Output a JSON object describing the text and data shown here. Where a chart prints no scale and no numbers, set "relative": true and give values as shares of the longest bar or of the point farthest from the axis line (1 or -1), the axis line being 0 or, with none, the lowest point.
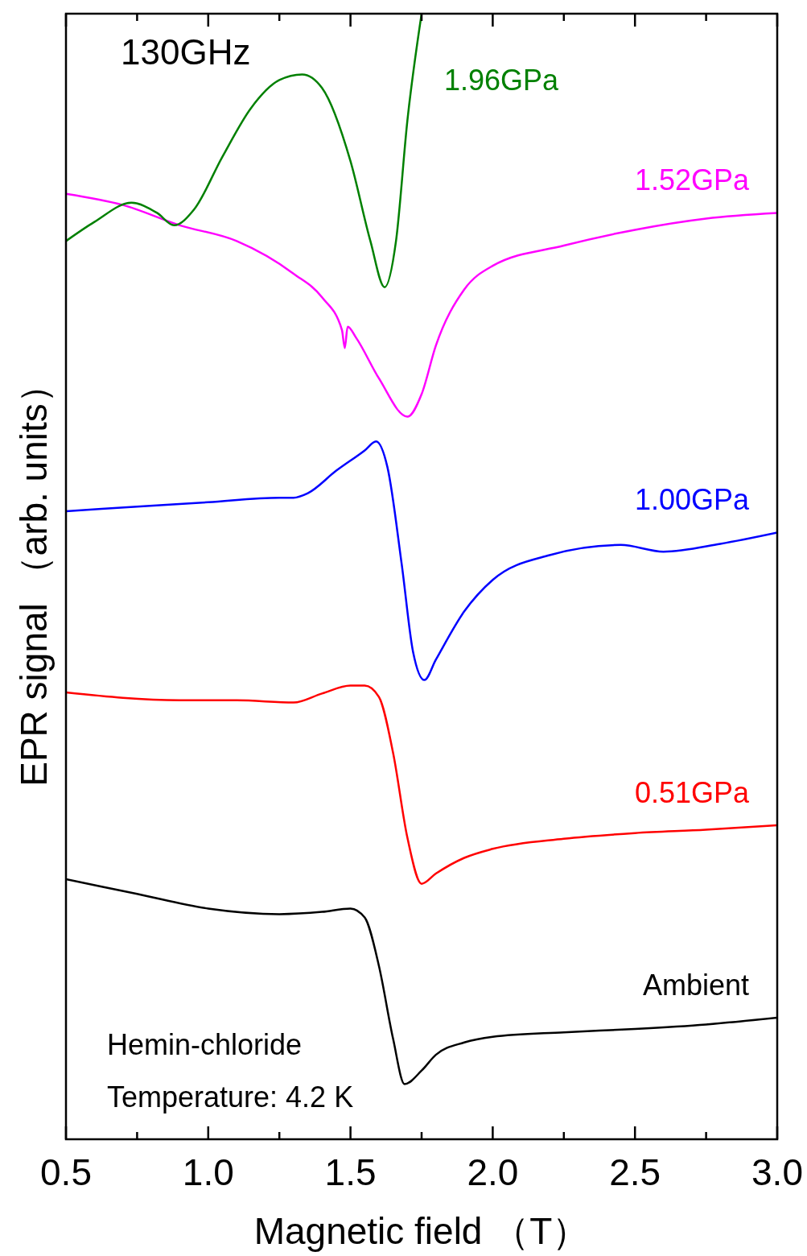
{
  "chart_data": {
    "type": "line",
    "relative": true,
    "xlabel": "Magnetic field （T）",
    "ylabel": "EPR signal （arb. units）",
    "xlim": [
      0.5,
      3.0
    ],
    "xticks": [
      {
        "value": 0.5,
        "label": "0.5"
      },
      {
        "value": 0.75,
        "label": null
      },
      {
        "value": 1,
        "label": "1.0"
      },
      {
        "value": 1.25,
        "label": null
      },
      {
        "value": 1.5,
        "label": "1.5"
      },
      {
        "value": 1.75,
        "label": null
      },
      {
        "value": 2,
        "label": "2.0"
      },
      {
        "value": 2.25,
        "label": null
      },
      {
        "value": 2.5,
        "label": "2.5"
      },
      {
        "value": 2.75,
        "label": null
      },
      {
        "value": 3,
        "label": "3.0"
      }
    ],
    "grid": false,
    "marker": "none",
    "line_style": "solid",
    "annotations": [
      "130GHz",
      "Hemin-chloride",
      "Temperature: 4.2 K"
    ],
    "series": [
      {
        "name": "Ambient",
        "color": "#000000",
        "x": [
          0.5,
          0.75,
          1.0,
          1.25,
          1.4,
          1.5,
          1.55,
          1.6,
          1.65,
          1.69,
          1.75,
          1.8,
          1.9,
          2.0,
          2.25,
          2.5,
          2.75,
          3.0
        ],
        "values": [
          0.231,
          0.218,
          0.205,
          0.2,
          0.202,
          0.205,
          0.197,
          0.154,
          0.089,
          0.049,
          0.061,
          0.075,
          0.086,
          0.091,
          0.095,
          0.098,
          0.102,
          0.108
        ]
      },
      {
        "name": "0.51GPa",
        "color": "#ff0000",
        "x": [
          0.5,
          0.9,
          1.1,
          1.3,
          1.4,
          1.5,
          1.55,
          1.6,
          1.65,
          1.7,
          1.75,
          1.8,
          1.9,
          2.0,
          2.25,
          2.5,
          2.75,
          3.0
        ],
        "values": [
          0.397,
          0.39,
          0.39,
          0.388,
          0.396,
          0.403,
          0.403,
          0.393,
          0.343,
          0.268,
          0.227,
          0.236,
          0.25,
          0.258,
          0.267,
          0.272,
          0.275,
          0.279
        ]
      },
      {
        "name": "1.00GPa",
        "color": "#0000ff",
        "x": [
          0.5,
          0.75,
          1.0,
          1.25,
          1.3,
          1.35,
          1.45,
          1.55,
          1.59,
          1.63,
          1.68,
          1.72,
          1.76,
          1.8,
          1.9,
          2.0,
          2.2,
          2.45,
          2.6,
          2.8,
          3.0
        ],
        "values": [
          0.558,
          0.562,
          0.566,
          0.57,
          0.57,
          0.574,
          0.594,
          0.612,
          0.62,
          0.597,
          0.511,
          0.433,
          0.408,
          0.426,
          0.469,
          0.497,
          0.519,
          0.528,
          0.522,
          0.529,
          0.539
        ]
      },
      {
        "name": "1.52GPa",
        "color": "#ff00ff",
        "x": [
          0.5,
          0.7,
          0.9,
          1.1,
          1.3,
          1.4,
          1.47,
          1.48,
          1.49,
          1.52,
          1.6,
          1.7,
          1.75,
          1.8,
          1.9,
          2.0,
          2.25,
          2.5,
          2.75,
          3.0
        ],
        "values": [
          0.84,
          0.83,
          0.812,
          0.798,
          0.769,
          0.748,
          0.719,
          0.703,
          0.722,
          0.712,
          0.676,
          0.642,
          0.662,
          0.705,
          0.755,
          0.776,
          0.794,
          0.808,
          0.818,
          0.823
        ]
      },
      {
        "name": "1.96GPa",
        "color": "#008000",
        "x": [
          0.5,
          0.6,
          0.73,
          0.82,
          0.88,
          0.95,
          1.05,
          1.15,
          1.25,
          1.33,
          1.4,
          1.5,
          1.57,
          1.62,
          1.66,
          1.7,
          1.75
        ],
        "values": [
          0.798,
          0.815,
          0.832,
          0.823,
          0.812,
          0.826,
          0.873,
          0.916,
          0.941,
          0.946,
          0.934,
          0.869,
          0.798,
          0.757,
          0.798,
          0.905,
          1.0
        ]
      }
    ]
  }
}
